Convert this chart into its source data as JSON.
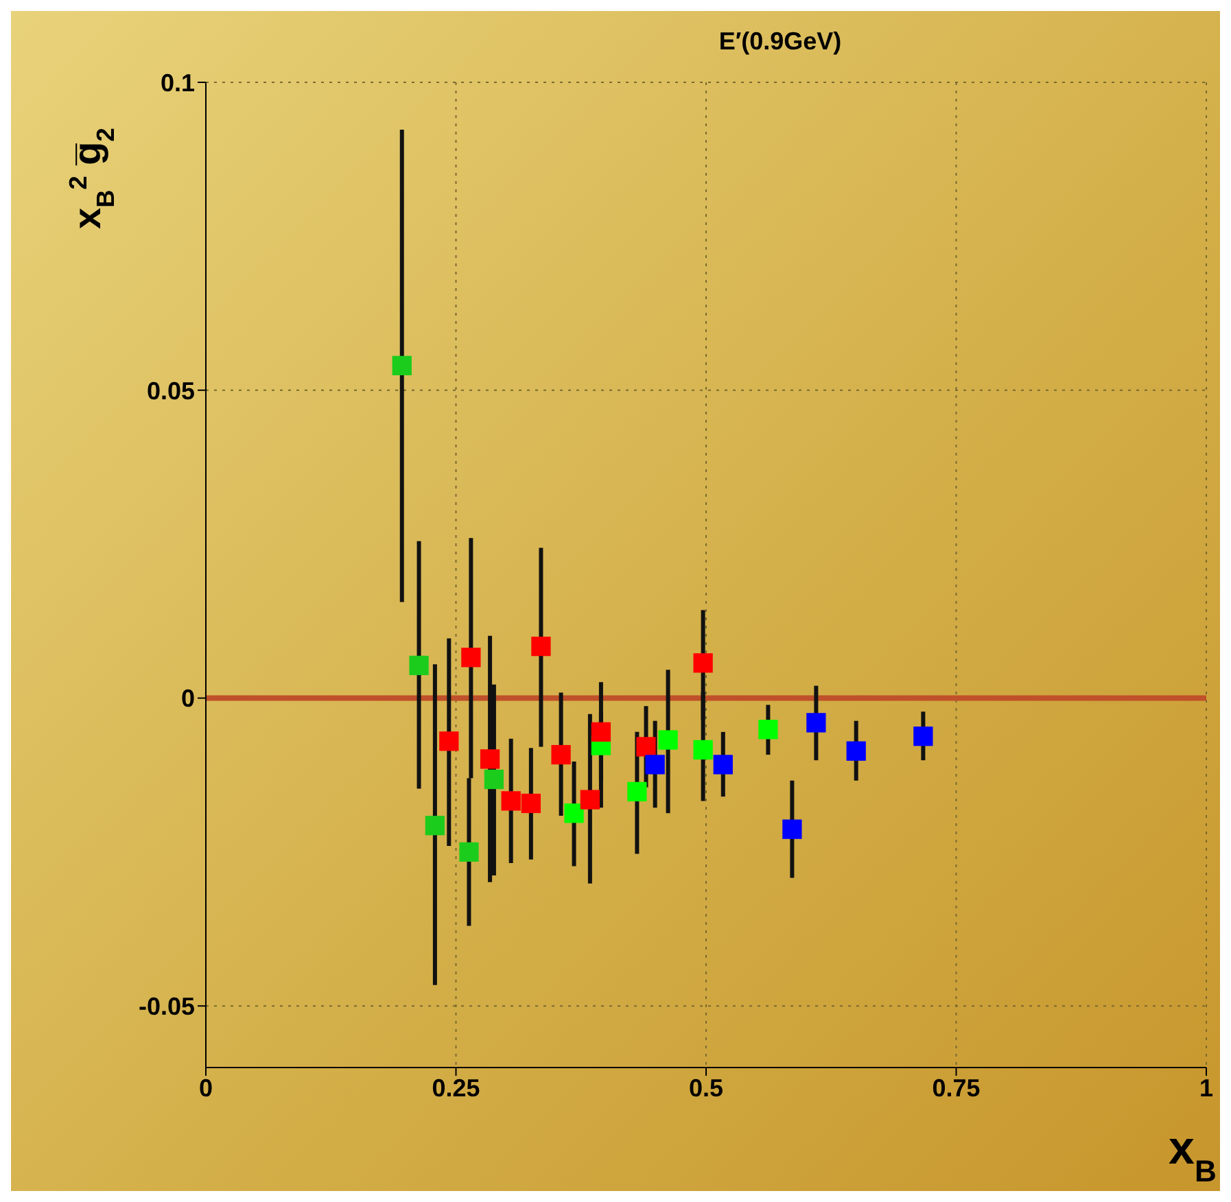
{
  "chart_data": {
    "type": "scatter",
    "title": "E′(0.9GeV)",
    "xlabel": "x$_{B}$",
    "ylabel": "x$_{B}$$^{2}$ g̅$_{2}$",
    "xlim": [
      0,
      1
    ],
    "xticks": [
      0,
      0.25,
      0.5,
      0.75,
      1
    ],
    "ylim": [
      -0.06,
      0.1
    ],
    "yticks": [
      -0.05,
      0,
      0.05,
      0.1
    ],
    "grid": true,
    "marker": "square",
    "ref_lines": [
      {
        "axis": "y",
        "value": 0,
        "color": "#c0502a"
      }
    ],
    "series": [
      {
        "color": "#1ccc1c",
        "x": [
          0.196,
          0.213,
          0.229,
          0.263,
          0.288
        ],
        "values": [
          0.054,
          0.0053,
          -0.0207,
          -0.025,
          -0.0132
        ],
        "errors": [
          [
            0.0156,
            0.0923
          ],
          [
            -0.0147,
            0.0255
          ],
          [
            -0.0466,
            0.0055
          ],
          [
            -0.037,
            -0.013
          ],
          [
            -0.0288,
            0.0022
          ]
        ]
      },
      {
        "color": "#00ff00",
        "x": [
          0.368,
          0.395,
          0.431,
          0.462,
          0.497,
          0.562
        ],
        "values": [
          -0.0187,
          -0.0077,
          -0.0152,
          -0.0068,
          -0.0084,
          -0.0051
        ],
        "errors": [
          [
            -0.0273,
            -0.0103
          ],
          [
            -0.0134,
            -0.0022
          ],
          [
            -0.0253,
            -0.0055
          ],
          [
            -0.0187,
            0.0046
          ],
          [
            -0.0167,
            0.001
          ],
          [
            -0.0092,
            -0.0011
          ]
        ]
      },
      {
        "color": "#ff0000",
        "x": [
          0.243,
          0.265,
          0.284,
          0.305,
          0.325,
          0.335,
          0.355,
          0.384,
          0.395,
          0.44,
          0.497
        ],
        "values": [
          -0.007,
          0.0066,
          -0.0099,
          -0.0167,
          -0.0171,
          0.0084,
          -0.0092,
          -0.0165,
          -0.0055,
          -0.0079,
          0.0057
        ],
        "errors": [
          [
            -0.024,
            0.0097
          ],
          [
            -0.013,
            0.026
          ],
          [
            -0.0299,
            0.0101
          ],
          [
            -0.0268,
            -0.0066
          ],
          [
            -0.0262,
            -0.0081
          ],
          [
            -0.0079,
            0.0244
          ],
          [
            -0.0191,
            0.0009
          ],
          [
            -0.0301,
            -0.0026
          ],
          [
            -0.0178,
            0.0026
          ],
          [
            -0.0145,
            -0.0013
          ],
          [
            -0.0035,
            0.0143
          ]
        ]
      },
      {
        "color": "#0000ff",
        "x": [
          0.449,
          0.517,
          0.586,
          0.61,
          0.65,
          0.717
        ],
        "values": [
          -0.0108,
          -0.0108,
          -0.0213,
          -0.004,
          -0.0086,
          -0.0062
        ],
        "errors": [
          [
            -0.0178,
            -0.0037
          ],
          [
            -0.016,
            -0.0055
          ],
          [
            -0.0292,
            -0.0134
          ],
          [
            -0.0101,
            0.002
          ],
          [
            -0.0134,
            -0.0037
          ],
          [
            -0.0101,
            -0.0022
          ]
        ]
      }
    ]
  }
}
